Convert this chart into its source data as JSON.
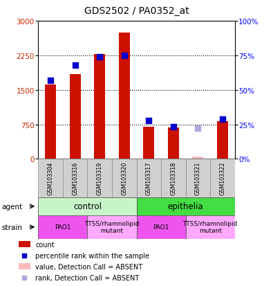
{
  "title": "GDS2502 / PA0352_at",
  "samples": [
    "GSM103304",
    "GSM103316",
    "GSM103319",
    "GSM103320",
    "GSM103317",
    "GSM103318",
    "GSM103321",
    "GSM103322"
  ],
  "counts": [
    1620,
    1850,
    2280,
    2750,
    700,
    680,
    50,
    820
  ],
  "percentiles": [
    57,
    68,
    74,
    75,
    28,
    23,
    22,
    29
  ],
  "absent": [
    false,
    false,
    false,
    false,
    false,
    false,
    true,
    false
  ],
  "ylim_left": [
    0,
    3000
  ],
  "ylim_right": [
    0,
    100
  ],
  "yticks_left": [
    0,
    750,
    1500,
    2250,
    3000
  ],
  "yticks_right": [
    0,
    25,
    50,
    75,
    100
  ],
  "ytick_labels_left": [
    "0",
    "750",
    "1500",
    "2250",
    "3000"
  ],
  "ytick_labels_right": [
    "0%",
    "25%",
    "50%",
    "75%",
    "100%"
  ],
  "agent_groups": [
    {
      "label": "control",
      "start": 0,
      "end": 4,
      "color": "#c8f5c8"
    },
    {
      "label": "epithelia",
      "start": 4,
      "end": 8,
      "color": "#44dd44"
    }
  ],
  "strain_groups": [
    {
      "label": "PAO1",
      "start": 0,
      "end": 2,
      "color": "#ee55ee"
    },
    {
      "label": "TTSS/rhamnolipid\nmutant",
      "start": 2,
      "end": 4,
      "color": "#ffaaff"
    },
    {
      "label": "PAO1",
      "start": 4,
      "end": 6,
      "color": "#ee55ee"
    },
    {
      "label": "TTSS/rhamnolipid\nmutant",
      "start": 6,
      "end": 8,
      "color": "#ffaaff"
    }
  ],
  "bar_color_present": "#cc1100",
  "bar_color_absent": "#ffbbbb",
  "dot_color_present": "#0000cc",
  "dot_color_absent": "#aaaadd",
  "dot_size": 30,
  "plot_bg": "#ffffff",
  "label_bg": "#cccccc"
}
